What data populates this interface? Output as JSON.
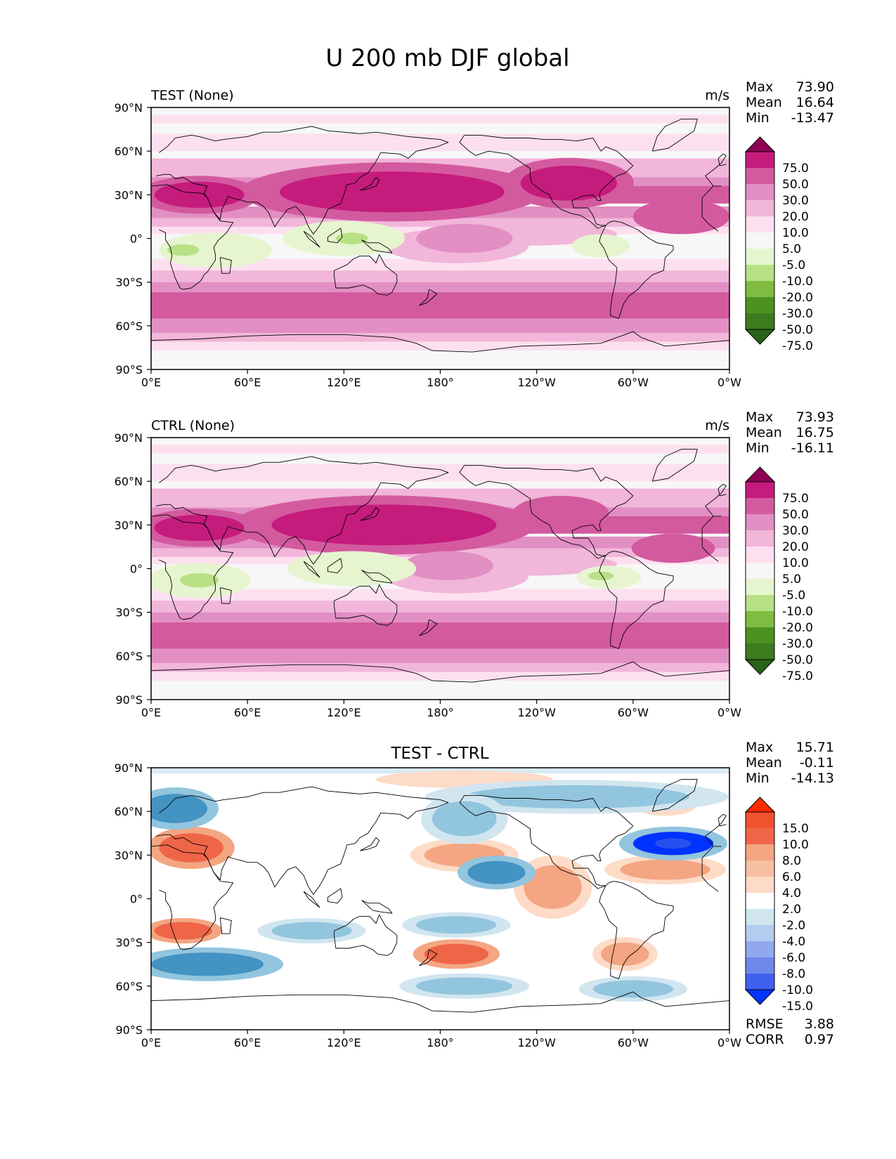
{
  "title": "U 200 mb DJF global",
  "colors": {
    "neutral": "#f7f7f7",
    "pink1": "#fde0ef",
    "pink2": "#f1b6da",
    "pink3": "#e28fc3",
    "pink4": "#d35a9e",
    "pink5": "#c51b7d",
    "pink6": "#8e0152",
    "green1": "#e6f5d0",
    "green2": "#b8e186",
    "green3": "#7fbc41",
    "green4": "#4d9221",
    "green5": "#276419",
    "red1": "#fddbc7",
    "red2": "#f4a582",
    "red3": "#ef6548",
    "red4": "#ff2a00",
    "blue1": "#d1e5f0",
    "blue2": "#92c5de",
    "blue3": "#4393c3",
    "blue4": "#0033ff",
    "coast": "#000000"
  },
  "chart_data": [
    {
      "type": "heatmap",
      "panel": "test",
      "title_left": "TEST (None)",
      "units": "m/s",
      "stats": [
        {
          "label": "Max",
          "value": "73.90"
        },
        {
          "label": "Mean",
          "value": "16.64"
        },
        {
          "label": "Min",
          "value": "-13.47"
        }
      ],
      "xlim": [
        0,
        360
      ],
      "ylim": [
        -90,
        90
      ],
      "x_tick_labels": [
        "0°E",
        "60°E",
        "120°E",
        "180°",
        "120°W",
        "60°W",
        "0°W"
      ],
      "y_tick_labels": [
        "90°N",
        "60°N",
        "30°N",
        "0°",
        "30°S",
        "60°S",
        "90°S"
      ],
      "colorbar": {
        "tick_labels": [
          "75.0",
          "50.0",
          "30.0",
          "20.0",
          "10.0",
          "5.0",
          "-5.0",
          "-10.0",
          "-20.0",
          "-30.0",
          "-50.0",
          "-75.0"
        ],
        "colors": [
          "#8e0152",
          "#c51b7d",
          "#d35a9e",
          "#e28fc3",
          "#f1b6da",
          "#fde0ef",
          "#f7f7f7",
          "#e6f5d0",
          "#b8e186",
          "#7fbc41",
          "#4d9221",
          "#3e7a1e",
          "#276419"
        ]
      },
      "features": [
        {
          "lon": 150,
          "lat": 32,
          "rx": 70,
          "ry": 14,
          "level": "pink5"
        },
        {
          "lon": 30,
          "lat": 30,
          "rx": 28,
          "ry": 9,
          "level": "pink5"
        },
        {
          "lon": 260,
          "lat": 38,
          "rx": 30,
          "ry": 12,
          "level": "pink5"
        },
        {
          "lon": 330,
          "lat": 15,
          "rx": 30,
          "ry": 12,
          "level": "pink4"
        },
        {
          "lon": 195,
          "lat": 0,
          "rx": 30,
          "ry": 10,
          "level": "pink3"
        },
        {
          "lon": 40,
          "lat": -8,
          "rx": 35,
          "ry": 12,
          "level": "green1"
        },
        {
          "lon": 120,
          "lat": 0,
          "rx": 38,
          "ry": 12,
          "level": "green1"
        },
        {
          "lon": 280,
          "lat": -5,
          "rx": 18,
          "ry": 8,
          "level": "green1"
        },
        {
          "lon": 20,
          "lat": -8,
          "rx": 10,
          "ry": 4,
          "level": "green2"
        },
        {
          "lon": 125,
          "lat": 0,
          "rx": 10,
          "ry": 4,
          "level": "green2"
        }
      ]
    },
    {
      "type": "heatmap",
      "panel": "ctrl",
      "title_left": "CTRL (None)",
      "units": "m/s",
      "stats": [
        {
          "label": "Max",
          "value": "73.93"
        },
        {
          "label": "Mean",
          "value": "16.75"
        },
        {
          "label": "Min",
          "value": "-16.11"
        }
      ],
      "xlim": [
        0,
        360
      ],
      "ylim": [
        -90,
        90
      ],
      "x_tick_labels": [
        "0°E",
        "60°E",
        "120°E",
        "180°",
        "120°W",
        "60°W",
        "0°W"
      ],
      "y_tick_labels": [
        "90°N",
        "60°N",
        "30°N",
        "0°",
        "30°S",
        "60°S",
        "90°S"
      ],
      "colorbar": {
        "tick_labels": [
          "75.0",
          "50.0",
          "30.0",
          "20.0",
          "10.0",
          "5.0",
          "-5.0",
          "-10.0",
          "-20.0",
          "-30.0",
          "-50.0",
          "-75.0"
        ],
        "colors": [
          "#8e0152",
          "#c51b7d",
          "#d35a9e",
          "#e28fc3",
          "#f1b6da",
          "#fde0ef",
          "#f7f7f7",
          "#e6f5d0",
          "#b8e186",
          "#7fbc41",
          "#4d9221",
          "#3e7a1e",
          "#276419"
        ]
      },
      "features": [
        {
          "lon": 145,
          "lat": 30,
          "rx": 70,
          "ry": 14,
          "level": "pink5"
        },
        {
          "lon": 30,
          "lat": 28,
          "rx": 28,
          "ry": 9,
          "level": "pink5"
        },
        {
          "lon": 255,
          "lat": 38,
          "rx": 30,
          "ry": 12,
          "level": "pink4"
        },
        {
          "lon": 325,
          "lat": 14,
          "rx": 26,
          "ry": 10,
          "level": "pink4"
        },
        {
          "lon": 185,
          "lat": 2,
          "rx": 28,
          "ry": 10,
          "level": "pink3"
        },
        {
          "lon": 30,
          "lat": -8,
          "rx": 32,
          "ry": 12,
          "level": "green1"
        },
        {
          "lon": 125,
          "lat": 0,
          "rx": 40,
          "ry": 12,
          "level": "green1"
        },
        {
          "lon": 285,
          "lat": -6,
          "rx": 20,
          "ry": 8,
          "level": "green1"
        },
        {
          "lon": 30,
          "lat": -8,
          "rx": 12,
          "ry": 5,
          "level": "green2"
        },
        {
          "lon": 280,
          "lat": -5,
          "rx": 8,
          "ry": 3,
          "level": "green2"
        }
      ]
    },
    {
      "type": "heatmap",
      "panel": "diff",
      "title_center": "TEST - CTRL",
      "stats": [
        {
          "label": "Max",
          "value": "15.71"
        },
        {
          "label": "Mean",
          "value": "-0.11"
        },
        {
          "label": "Min",
          "value": "-14.13"
        }
      ],
      "extra_stats": [
        {
          "label": "RMSE",
          "value": "3.88"
        },
        {
          "label": "CORR",
          "value": "0.97"
        }
      ],
      "xlim": [
        0,
        360
      ],
      "ylim": [
        -90,
        90
      ],
      "x_tick_labels": [
        "0°E",
        "60°E",
        "120°E",
        "180°",
        "120°W",
        "60°W",
        "0°W"
      ],
      "y_tick_labels": [
        "90°N",
        "60°N",
        "30°N",
        "0°",
        "30°S",
        "60°S",
        "90°S"
      ],
      "colorbar": {
        "tick_labels": [
          "15.0",
          "10.0",
          "8.0",
          "6.0",
          "4.0",
          "2.0",
          "-2.0",
          "-4.0",
          "-6.0",
          "-8.0",
          "-10.0",
          "-15.0"
        ],
        "colors": [
          "#ff2a00",
          "#f0512f",
          "#ef6548",
          "#f4a582",
          "#f7bfa3",
          "#fddbc7",
          "#ffffff",
          "#d1e5f0",
          "#b3cdf0",
          "#92a8ee",
          "#6f88ea",
          "#4060f0",
          "#0033ff"
        ]
      },
      "features": [
        {
          "lon": 25,
          "lat": 35,
          "rx": 20,
          "ry": 10,
          "level": "red3"
        },
        {
          "lon": 20,
          "lat": -22,
          "rx": 18,
          "ry": 6,
          "level": "red3"
        },
        {
          "lon": 195,
          "lat": 30,
          "rx": 25,
          "ry": 8,
          "level": "red2"
        },
        {
          "lon": 190,
          "lat": -38,
          "rx": 20,
          "ry": 7,
          "level": "red3"
        },
        {
          "lon": 320,
          "lat": 20,
          "rx": 28,
          "ry": 7,
          "level": "red2"
        },
        {
          "lon": 250,
          "lat": 8,
          "rx": 18,
          "ry": 15,
          "level": "red2"
        },
        {
          "lon": 295,
          "lat": -38,
          "rx": 15,
          "ry": 8,
          "level": "red2"
        },
        {
          "lon": 320,
          "lat": 65,
          "rx": 20,
          "ry": 8,
          "level": "red1"
        },
        {
          "lon": 195,
          "lat": 82,
          "rx": 55,
          "ry": 6,
          "level": "red1"
        },
        {
          "lon": 15,
          "lat": 62,
          "rx": 20,
          "ry": 10,
          "level": "blue3"
        },
        {
          "lon": 325,
          "lat": 38,
          "rx": 25,
          "ry": 8,
          "level": "blue4"
        },
        {
          "lon": 35,
          "lat": -45,
          "rx": 35,
          "ry": 8,
          "level": "blue3"
        },
        {
          "lon": 265,
          "lat": 70,
          "rx": 70,
          "ry": 8,
          "level": "blue2"
        },
        {
          "lon": 195,
          "lat": 55,
          "rx": 20,
          "ry": 12,
          "level": "blue2"
        },
        {
          "lon": 215,
          "lat": 18,
          "rx": 18,
          "ry": 8,
          "level": "blue3"
        },
        {
          "lon": 195,
          "lat": -60,
          "rx": 30,
          "ry": 6,
          "level": "blue2"
        },
        {
          "lon": 300,
          "lat": -62,
          "rx": 25,
          "ry": 6,
          "level": "blue2"
        },
        {
          "lon": 190,
          "lat": -18,
          "rx": 25,
          "ry": 6,
          "level": "blue2"
        },
        {
          "lon": 100,
          "lat": -22,
          "rx": 25,
          "ry": 6,
          "level": "blue2"
        }
      ]
    }
  ]
}
